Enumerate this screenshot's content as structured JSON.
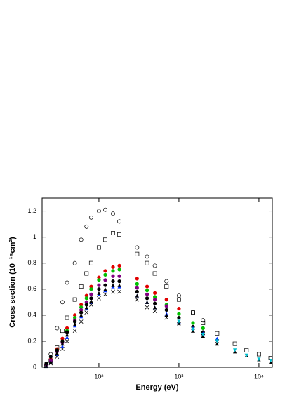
{
  "chart_data": {
    "type": "scatter",
    "xlabel": "Energy (eV)",
    "ylabel": "Cross section (10⁻¹⁶cm²)",
    "xscale": "log",
    "xlim": [
      19.5,
      14700
    ],
    "ylim": [
      0,
      1.3
    ],
    "xticks": [
      {
        "value": 100,
        "label": "10²"
      },
      {
        "value": 1000,
        "label": "10³"
      },
      {
        "value": 10000,
        "label": "10⁴"
      }
    ],
    "yticks": [
      0,
      0.2,
      0.4,
      0.6,
      0.8,
      1,
      1.2
    ],
    "x": [
      22,
      25,
      30,
      35,
      40,
      50,
      60,
      70,
      80,
      100,
      120,
      150,
      180,
      200,
      300,
      400,
      500,
      700,
      1000,
      1500,
      2000,
      3000,
      5000,
      7000,
      10000,
      14000
    ],
    "series": [
      {
        "marker": "open-circle",
        "color": "#000000",
        "values": [
          0.02,
          0.1,
          0.3,
          0.5,
          0.65,
          0.8,
          0.98,
          1.08,
          1.15,
          1.2,
          1.21,
          1.18,
          1.12,
          null,
          0.92,
          0.85,
          0.78,
          0.66,
          0.55,
          0.42,
          0.36,
          null,
          null,
          null,
          null,
          null
        ]
      },
      {
        "marker": "open-square",
        "color": "#000000",
        "values": [
          0.01,
          0.05,
          0.15,
          0.28,
          0.38,
          0.52,
          0.62,
          0.72,
          0.8,
          0.92,
          0.98,
          1.03,
          1.02,
          null,
          0.87,
          0.8,
          0.72,
          0.62,
          0.52,
          0.42,
          0.34,
          0.26,
          0.18,
          0.13,
          0.1,
          0.07
        ]
      },
      {
        "marker": "circle",
        "color": "#e00000",
        "values": [
          0.02,
          0.06,
          0.14,
          0.22,
          0.3,
          0.4,
          0.48,
          0.55,
          0.62,
          0.69,
          0.74,
          0.77,
          0.78,
          null,
          0.68,
          0.62,
          0.57,
          0.52,
          0.45,
          null,
          null,
          null,
          null,
          null,
          null,
          null
        ]
      },
      {
        "marker": "circle",
        "color": "#00c000",
        "values": [
          0.02,
          0.05,
          0.13,
          0.2,
          0.28,
          0.38,
          0.46,
          0.53,
          0.6,
          0.67,
          0.71,
          0.74,
          0.75,
          null,
          0.64,
          0.59,
          0.54,
          0.48,
          0.41,
          0.34,
          0.3,
          null,
          null,
          null,
          null,
          null
        ]
      },
      {
        "marker": "circle",
        "color": "#800080",
        "values": [
          0.02,
          0.05,
          0.12,
          0.19,
          0.27,
          0.36,
          0.44,
          0.5,
          0.56,
          0.63,
          0.67,
          0.7,
          0.7,
          null,
          0.61,
          0.56,
          0.52,
          0.47,
          null,
          null,
          null,
          null,
          null,
          null,
          null,
          null
        ]
      },
      {
        "marker": "circle",
        "color": "#000000",
        "values": [
          0.03,
          0.08,
          0.13,
          0.2,
          0.27,
          0.35,
          0.42,
          0.48,
          0.53,
          0.6,
          0.63,
          0.66,
          0.66,
          null,
          0.58,
          0.53,
          0.49,
          0.44,
          0.38,
          0.31,
          0.27,
          null,
          null,
          null,
          null,
          null
        ]
      },
      {
        "marker": "triangle",
        "color": "#0030ff",
        "values": [
          0.01,
          0.04,
          0.1,
          0.16,
          0.23,
          0.32,
          0.39,
          0.45,
          0.5,
          0.56,
          0.59,
          0.62,
          0.62,
          null,
          0.55,
          0.5,
          0.46,
          0.41,
          0.35,
          0.3,
          0.26,
          0.22,
          null,
          null,
          null,
          null
        ]
      },
      {
        "marker": "cross",
        "color": "#000000",
        "values": [
          0.01,
          0.03,
          0.08,
          0.14,
          0.2,
          0.28,
          0.35,
          0.42,
          0.48,
          0.53,
          0.56,
          0.58,
          0.58,
          null,
          0.52,
          0.46,
          0.43,
          0.38,
          0.33,
          0.28,
          0.24,
          0.2,
          null,
          null,
          null,
          null
        ]
      },
      {
        "marker": "triangle",
        "color": "#000000",
        "values": [
          0.01,
          0.04,
          0.11,
          0.18,
          0.25,
          0.33,
          0.4,
          0.46,
          0.51,
          0.57,
          0.6,
          0.63,
          0.63,
          null,
          0.55,
          0.5,
          0.46,
          0.4,
          0.34,
          0.28,
          0.24,
          0.18,
          0.12,
          0.09,
          0.06,
          0.04
        ]
      },
      {
        "marker": "down-triangle",
        "color": "#00c0d0",
        "values": [
          null,
          null,
          null,
          null,
          null,
          null,
          null,
          null,
          null,
          null,
          null,
          null,
          null,
          null,
          null,
          null,
          null,
          null,
          0.35,
          0.29,
          0.25,
          0.2,
          0.13,
          0.09,
          0.06,
          0.05
        ]
      }
    ]
  }
}
